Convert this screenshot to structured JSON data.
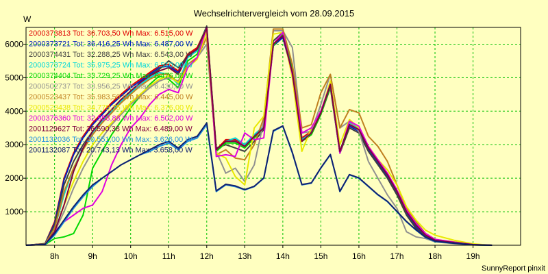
{
  "chart_data": {
    "type": "line",
    "title": "Wechselrichtervergleich vom 28.09.2015",
    "ylabel": "W",
    "xlabel": "",
    "footer": "SunnyReport pinxit",
    "x_unit": "hours",
    "xlim": [
      7.25,
      20.25
    ],
    "ylim": [
      0,
      6500
    ],
    "x_ticks": [
      8,
      9,
      10,
      11,
      12,
      13,
      14,
      15,
      16,
      17,
      18,
      19
    ],
    "x_tick_labels": [
      "8h",
      "9h",
      "10h",
      "11h",
      "12h",
      "13h",
      "14h",
      "15h",
      "16h",
      "17h",
      "18h",
      "19h"
    ],
    "y_ticks": [
      1000,
      2000,
      3000,
      4000,
      5000,
      6000
    ],
    "y_tick_labels": [
      "1000",
      "2000",
      "3000",
      "4000",
      "5000",
      "6000"
    ],
    "grid": true,
    "legend_position": "top-left",
    "x": [
      7.25,
      7.75,
      8.0,
      8.25,
      8.5,
      8.75,
      9.0,
      9.25,
      9.5,
      9.75,
      10.0,
      10.25,
      10.5,
      10.75,
      11.0,
      11.25,
      11.5,
      11.75,
      12.0,
      12.25,
      12.5,
      12.75,
      13.0,
      13.25,
      13.5,
      13.75,
      14.0,
      14.25,
      14.5,
      14.75,
      15.0,
      15.25,
      15.5,
      15.75,
      16.0,
      16.25,
      16.5,
      16.75,
      17.0,
      17.25,
      17.5,
      17.75,
      18.0,
      18.5,
      19.0,
      19.5
    ],
    "series": [
      {
        "name": "2000373813 Tot: 36.703,50 Wh Max: 6.515,00 W",
        "color": "#e00000",
        "values": [
          0,
          50,
          700,
          2000,
          2750,
          3250,
          3650,
          3950,
          4250,
          4500,
          4750,
          4950,
          5150,
          5350,
          5400,
          5200,
          5700,
          5900,
          6500,
          2850,
          3150,
          3150,
          3000,
          3300,
          3550,
          6000,
          6250,
          5200,
          3200,
          3400,
          4000,
          4800,
          2800,
          3600,
          3450,
          2900,
          2500,
          2100,
          1600,
          1000,
          600,
          300,
          150,
          80,
          20,
          0
        ]
      },
      {
        "name": "2000373721 Tot: 36.416,25 Wh Max: 6.487,00 W",
        "color": "#0020c0",
        "values": [
          0,
          50,
          650,
          1950,
          2700,
          3200,
          3600,
          3900,
          4200,
          4450,
          4700,
          4900,
          5100,
          5300,
          5350,
          5150,
          5650,
          5850,
          6480,
          2800,
          3100,
          3100,
          2950,
          3250,
          3500,
          5950,
          6200,
          5150,
          3150,
          3350,
          3950,
          4750,
          2750,
          3550,
          3400,
          2850,
          2450,
          2050,
          1550,
          950,
          550,
          280,
          130,
          70,
          15,
          0
        ]
      },
      {
        "name": "2000374431 Tot: 32.288,25 Wh Max: 6.543,00 W",
        "color": "#404040",
        "values": [
          0,
          40,
          600,
          1800,
          2500,
          3000,
          3400,
          3750,
          4050,
          4300,
          4600,
          4850,
          5050,
          5250,
          5500,
          5300,
          5650,
          5850,
          6540,
          2900,
          3000,
          2900,
          2800,
          3100,
          3450,
          6100,
          6350,
          5250,
          3100,
          3300,
          3900,
          4700,
          2750,
          3500,
          3350,
          2800,
          2400,
          2000,
          1500,
          900,
          500,
          250,
          120,
          60,
          10,
          0
        ]
      },
      {
        "name": "2000373724 Tot: 35.975,25 Wh Max: 6.510,00 W",
        "color": "#00d8d8",
        "values": [
          0,
          30,
          500,
          1500,
          2300,
          2900,
          3350,
          3700,
          4000,
          4300,
          4550,
          4800,
          5000,
          5150,
          5100,
          4800,
          5600,
          5800,
          6500,
          2800,
          3100,
          3200,
          3000,
          3300,
          3550,
          6000,
          6300,
          5200,
          3150,
          3350,
          3950,
          4800,
          2800,
          3650,
          3500,
          2900,
          2500,
          2100,
          1600,
          1000,
          600,
          300,
          150,
          80,
          20,
          0
        ]
      },
      {
        "name": "2000374404 Tot: 33.729,25 Wh Max: 6.476,00 W",
        "color": "#00d800",
        "values": [
          0,
          20,
          200,
          250,
          350,
          900,
          2300,
          2800,
          3300,
          3700,
          4100,
          4450,
          4800,
          5050,
          4950,
          4700,
          5500,
          5700,
          6470,
          2800,
          3050,
          3050,
          2900,
          3200,
          3500,
          5950,
          6300,
          5200,
          3100,
          3300,
          3900,
          4750,
          2800,
          3600,
          3450,
          2900,
          2500,
          2100,
          1600,
          1000,
          600,
          300,
          150,
          80,
          20,
          0
        ]
      },
      {
        "name": "2000502737 Tot: 33.956,25 Wh Max: 6.430,00 W",
        "color": "#909090",
        "values": [
          0,
          20,
          400,
          1000,
          1700,
          2300,
          2800,
          3200,
          3600,
          3900,
          4200,
          4450,
          4700,
          4900,
          5000,
          4900,
          5400,
          5600,
          6000,
          2800,
          2150,
          2300,
          1900,
          2400,
          3700,
          6400,
          6400,
          5900,
          3350,
          3400,
          4200,
          5100,
          3500,
          3700,
          3400,
          2500,
          2000,
          1500,
          1100,
          400,
          250,
          200,
          100,
          50,
          10,
          0
        ]
      },
      {
        "name": "2000523437 Tot: 35.983,50 Wh Max: 6.445,00 W",
        "color": "#c08020",
        "values": [
          0,
          40,
          500,
          1600,
          2300,
          2850,
          3300,
          3650,
          3950,
          4250,
          4500,
          4750,
          4950,
          5100,
          5100,
          4850,
          5400,
          5600,
          6200,
          2700,
          2850,
          2600,
          2550,
          3000,
          3800,
          6450,
          6450,
          5400,
          3500,
          3600,
          4550,
          5100,
          3500,
          4050,
          3950,
          3250,
          2950,
          2500,
          1800,
          1100,
          700,
          350,
          170,
          100,
          30,
          0
        ]
      },
      {
        "name": "2000523438 Tot: 34.779,75 Wh Max: 6.376,00 W",
        "color": "#e8e800",
        "values": [
          0,
          30,
          400,
          1200,
          1900,
          2500,
          3000,
          3350,
          3650,
          3950,
          4250,
          4500,
          4750,
          4950,
          5050,
          4850,
          5300,
          5550,
          6370,
          2750,
          2600,
          2050,
          1800,
          3500,
          3850,
          6300,
          6350,
          5000,
          2800,
          3500,
          3950,
          4900,
          3000,
          3750,
          3500,
          2950,
          2550,
          2250,
          1800,
          1150,
          750,
          450,
          300,
          150,
          40,
          0
        ]
      },
      {
        "name": "2000376360 Tot: 32.553,88 Wh Max: 6.502,00 W",
        "color": "#e000e0",
        "values": [
          0,
          20,
          400,
          700,
          900,
          1100,
          1200,
          1600,
          2400,
          3000,
          3500,
          3800,
          4200,
          4500,
          4650,
          4550,
          5300,
          5600,
          6500,
          2650,
          2700,
          2650,
          3350,
          3150,
          3200,
          6000,
          6350,
          5100,
          3350,
          3500,
          4000,
          4800,
          2750,
          3700,
          3550,
          2950,
          2550,
          2150,
          1650,
          1050,
          650,
          350,
          180,
          90,
          20,
          0
        ]
      },
      {
        "name": "2001129627 Tot: 36.590,38 Wh Max: 6.489,00 W",
        "color": "#800040",
        "values": [
          0,
          20,
          400,
          1200,
          2200,
          2900,
          3400,
          3750,
          4050,
          4350,
          4600,
          4850,
          5050,
          5200,
          5300,
          5100,
          5650,
          5850,
          6480,
          2850,
          3100,
          3100,
          2950,
          3250,
          3500,
          6000,
          6250,
          5150,
          3100,
          3350,
          3950,
          4800,
          2800,
          3600,
          3450,
          2900,
          2500,
          2100,
          1600,
          1000,
          600,
          300,
          150,
          80,
          20,
          0
        ]
      },
      {
        "name": "2001132036 Tot: 20.551,00 Wh Max: 3.626,00 W",
        "color": "#2090e0",
        "values": [
          0,
          20,
          300,
          700,
          1100,
          1450,
          1750,
          2000,
          2200,
          2400,
          2550,
          2700,
          2800,
          2950,
          3050,
          2850,
          3100,
          3200,
          3600,
          1600,
          1800,
          1750,
          1650,
          1750,
          2000,
          3400,
          3550,
          2750,
          1800,
          1850,
          2300,
          2700,
          1600,
          2100,
          2000,
          1750,
          1500,
          1300,
          1000,
          700,
          450,
          230,
          110,
          60,
          10,
          0
        ]
      },
      {
        "name": "2001132087 Tot: 20.743,13 Wh Max: 3.658,00 W",
        "color": "#102070",
        "values": [
          0,
          30,
          350,
          750,
          1150,
          1500,
          1800,
          2000,
          2200,
          2400,
          2550,
          2700,
          2850,
          3000,
          3100,
          2900,
          3150,
          3250,
          3650,
          1620,
          1820,
          1770,
          1660,
          1760,
          2010,
          3420,
          3560,
          2770,
          1810,
          1860,
          2310,
          2710,
          1610,
          2110,
          2010,
          1760,
          1510,
          1310,
          1010,
          710,
          460,
          240,
          120,
          60,
          10,
          0
        ]
      }
    ]
  }
}
